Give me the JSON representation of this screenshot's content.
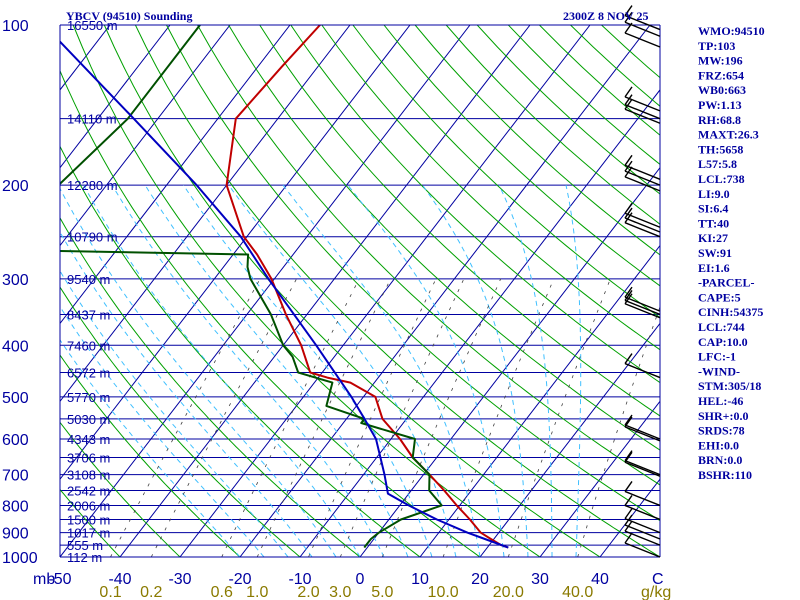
{
  "header": {
    "title": "YBCV (94510) Sounding",
    "time": "2300Z  8 NOV 25"
  },
  "units": {
    "pressure": "mb",
    "temp": "C",
    "mixing": "g/kg"
  },
  "colors": {
    "frame": "#0000a0",
    "dry_adiabat": "#00a000",
    "moist_adiabat": "#40c0ff",
    "mixing_ratio": "#404040",
    "temperature": "#c00000",
    "dewpoint": "#005000",
    "parcel": "#0000c0",
    "wind": "#000000",
    "mixing_label": "#8a7a00"
  },
  "indices": [
    "WMO:94510",
    "TP:103",
    "MW:196",
    "FRZ:654",
    "WB0:663",
    "PW:1.13",
    "RH:68.8",
    "MAXT:26.3",
    "TH:5658",
    "L57:5.8",
    "LCL:738",
    "LI:9.0",
    "SI:6.4",
    "TT:40",
    "KI:27",
    "SW:91",
    "EI:1.6",
    "-PARCEL-",
    "CAPE:5",
    "CINH:54375",
    "LCL:744",
    "CAP:10.0",
    "LFC:-1",
    "-WIND-",
    "STM:305/18",
    "HEL:-46",
    "SHR+:0.0",
    "SRDS:78",
    "EHI:0.0",
    "BRN:0.0",
    "BSHR:110"
  ],
  "chart_data": {
    "type": "line",
    "chart_kind": "skew-T log-P sounding",
    "title": "YBCV (94510) Sounding",
    "xlabel": "C",
    "ylabel": "mb",
    "pressure_range_mb": [
      1000,
      100
    ],
    "temp_range_c": [
      -50,
      50
    ],
    "pressure_ticks": [
      100,
      200,
      300,
      400,
      500,
      600,
      700,
      800,
      900,
      1000
    ],
    "temp_ticks": [
      -50,
      -40,
      -30,
      -20,
      -10,
      0,
      10,
      20,
      30,
      40
    ],
    "mixing_ratio_labels": [
      "0.1",
      "0.2",
      "0.6",
      "1.0",
      "2.0",
      "3.0",
      "5.0",
      "10.0",
      "20.0",
      "40.0"
    ],
    "mixing_ratio_values": [
      0.1,
      0.2,
      0.6,
      1.0,
      2.0,
      3.0,
      5.0,
      10.0,
      20.0,
      40.0
    ],
    "height_labels": [
      {
        "p": 100,
        "label": "16550 m"
      },
      {
        "p": 150,
        "label": "14110 m"
      },
      {
        "p": 200,
        "label": "12280 m"
      },
      {
        "p": 250,
        "label": "10790 m"
      },
      {
        "p": 300,
        "label": "9540 m"
      },
      {
        "p": 350,
        "label": "8437 m"
      },
      {
        "p": 400,
        "label": "7460 m"
      },
      {
        "p": 450,
        "label": "6572 m"
      },
      {
        "p": 500,
        "label": "5770 m"
      },
      {
        "p": 550,
        "label": "5030 m"
      },
      {
        "p": 600,
        "label": "4343 m"
      },
      {
        "p": 650,
        "label": "3706 m"
      },
      {
        "p": 700,
        "label": "3108 m"
      },
      {
        "p": 750,
        "label": "2542 m"
      },
      {
        "p": 800,
        "label": "2006 m"
      },
      {
        "p": 850,
        "label": "1500 m"
      },
      {
        "p": 900,
        "label": "1017 m"
      },
      {
        "p": 950,
        "label": "555 m"
      },
      {
        "p": 1000,
        "label": "112 m"
      }
    ],
    "series": [
      {
        "key": "temperature",
        "p": [
          960,
          950,
          925,
          900,
          850,
          800,
          750,
          700,
          650,
          600,
          550,
          500,
          470,
          460,
          450,
          400,
          350,
          300,
          270,
          250,
          200,
          150,
          120,
          100
        ],
        "t": [
          23.5,
          22,
          19.5,
          17,
          13.5,
          9.5,
          5.5,
          1,
          -4,
          -8.5,
          -14,
          -18,
          -24,
          -28.5,
          -32,
          -37,
          -43.5,
          -50.5,
          -56,
          -60.5,
          -70,
          -77,
          -76,
          -75
        ]
      },
      {
        "key": "dewpoint",
        "p": [
          960,
          950,
          925,
          900,
          850,
          800,
          750,
          700,
          650,
          600,
          560,
          550,
          520,
          470,
          460,
          450,
          420,
          400,
          350,
          300,
          285,
          270,
          265,
          250,
          200,
          150,
          100
        ],
        "t": [
          -0.5,
          -0.5,
          -0.5,
          0,
          2,
          7,
          3,
          1,
          -4,
          -6,
          -17,
          -17,
          -25,
          -27,
          -30.5,
          -34,
          -37,
          -40,
          -46,
          -54,
          -56,
          -57.5,
          -97,
          -98,
          -98,
          -95,
          -95
        ]
      },
      {
        "key": "parcel",
        "p": [
          960,
          925,
          900,
          850,
          800,
          760,
          700,
          600,
          550,
          500,
          400,
          300,
          250,
          200,
          150,
          100
        ],
        "t": [
          23.5,
          18.5,
          14.8,
          8,
          1.5,
          -3.5,
          -6.5,
          -12.5,
          -17,
          -22,
          -34.5,
          -51,
          -61,
          -75,
          -94,
          -121
        ]
      }
    ],
    "wind_levels_mb": [
      102,
      105,
      110,
      145,
      150,
      153,
      195,
      200,
      205,
      240,
      245,
      250,
      345,
      350,
      355,
      460,
      600,
      605,
      700,
      705,
      800,
      850,
      900,
      925,
      950,
      1000
    ]
  }
}
